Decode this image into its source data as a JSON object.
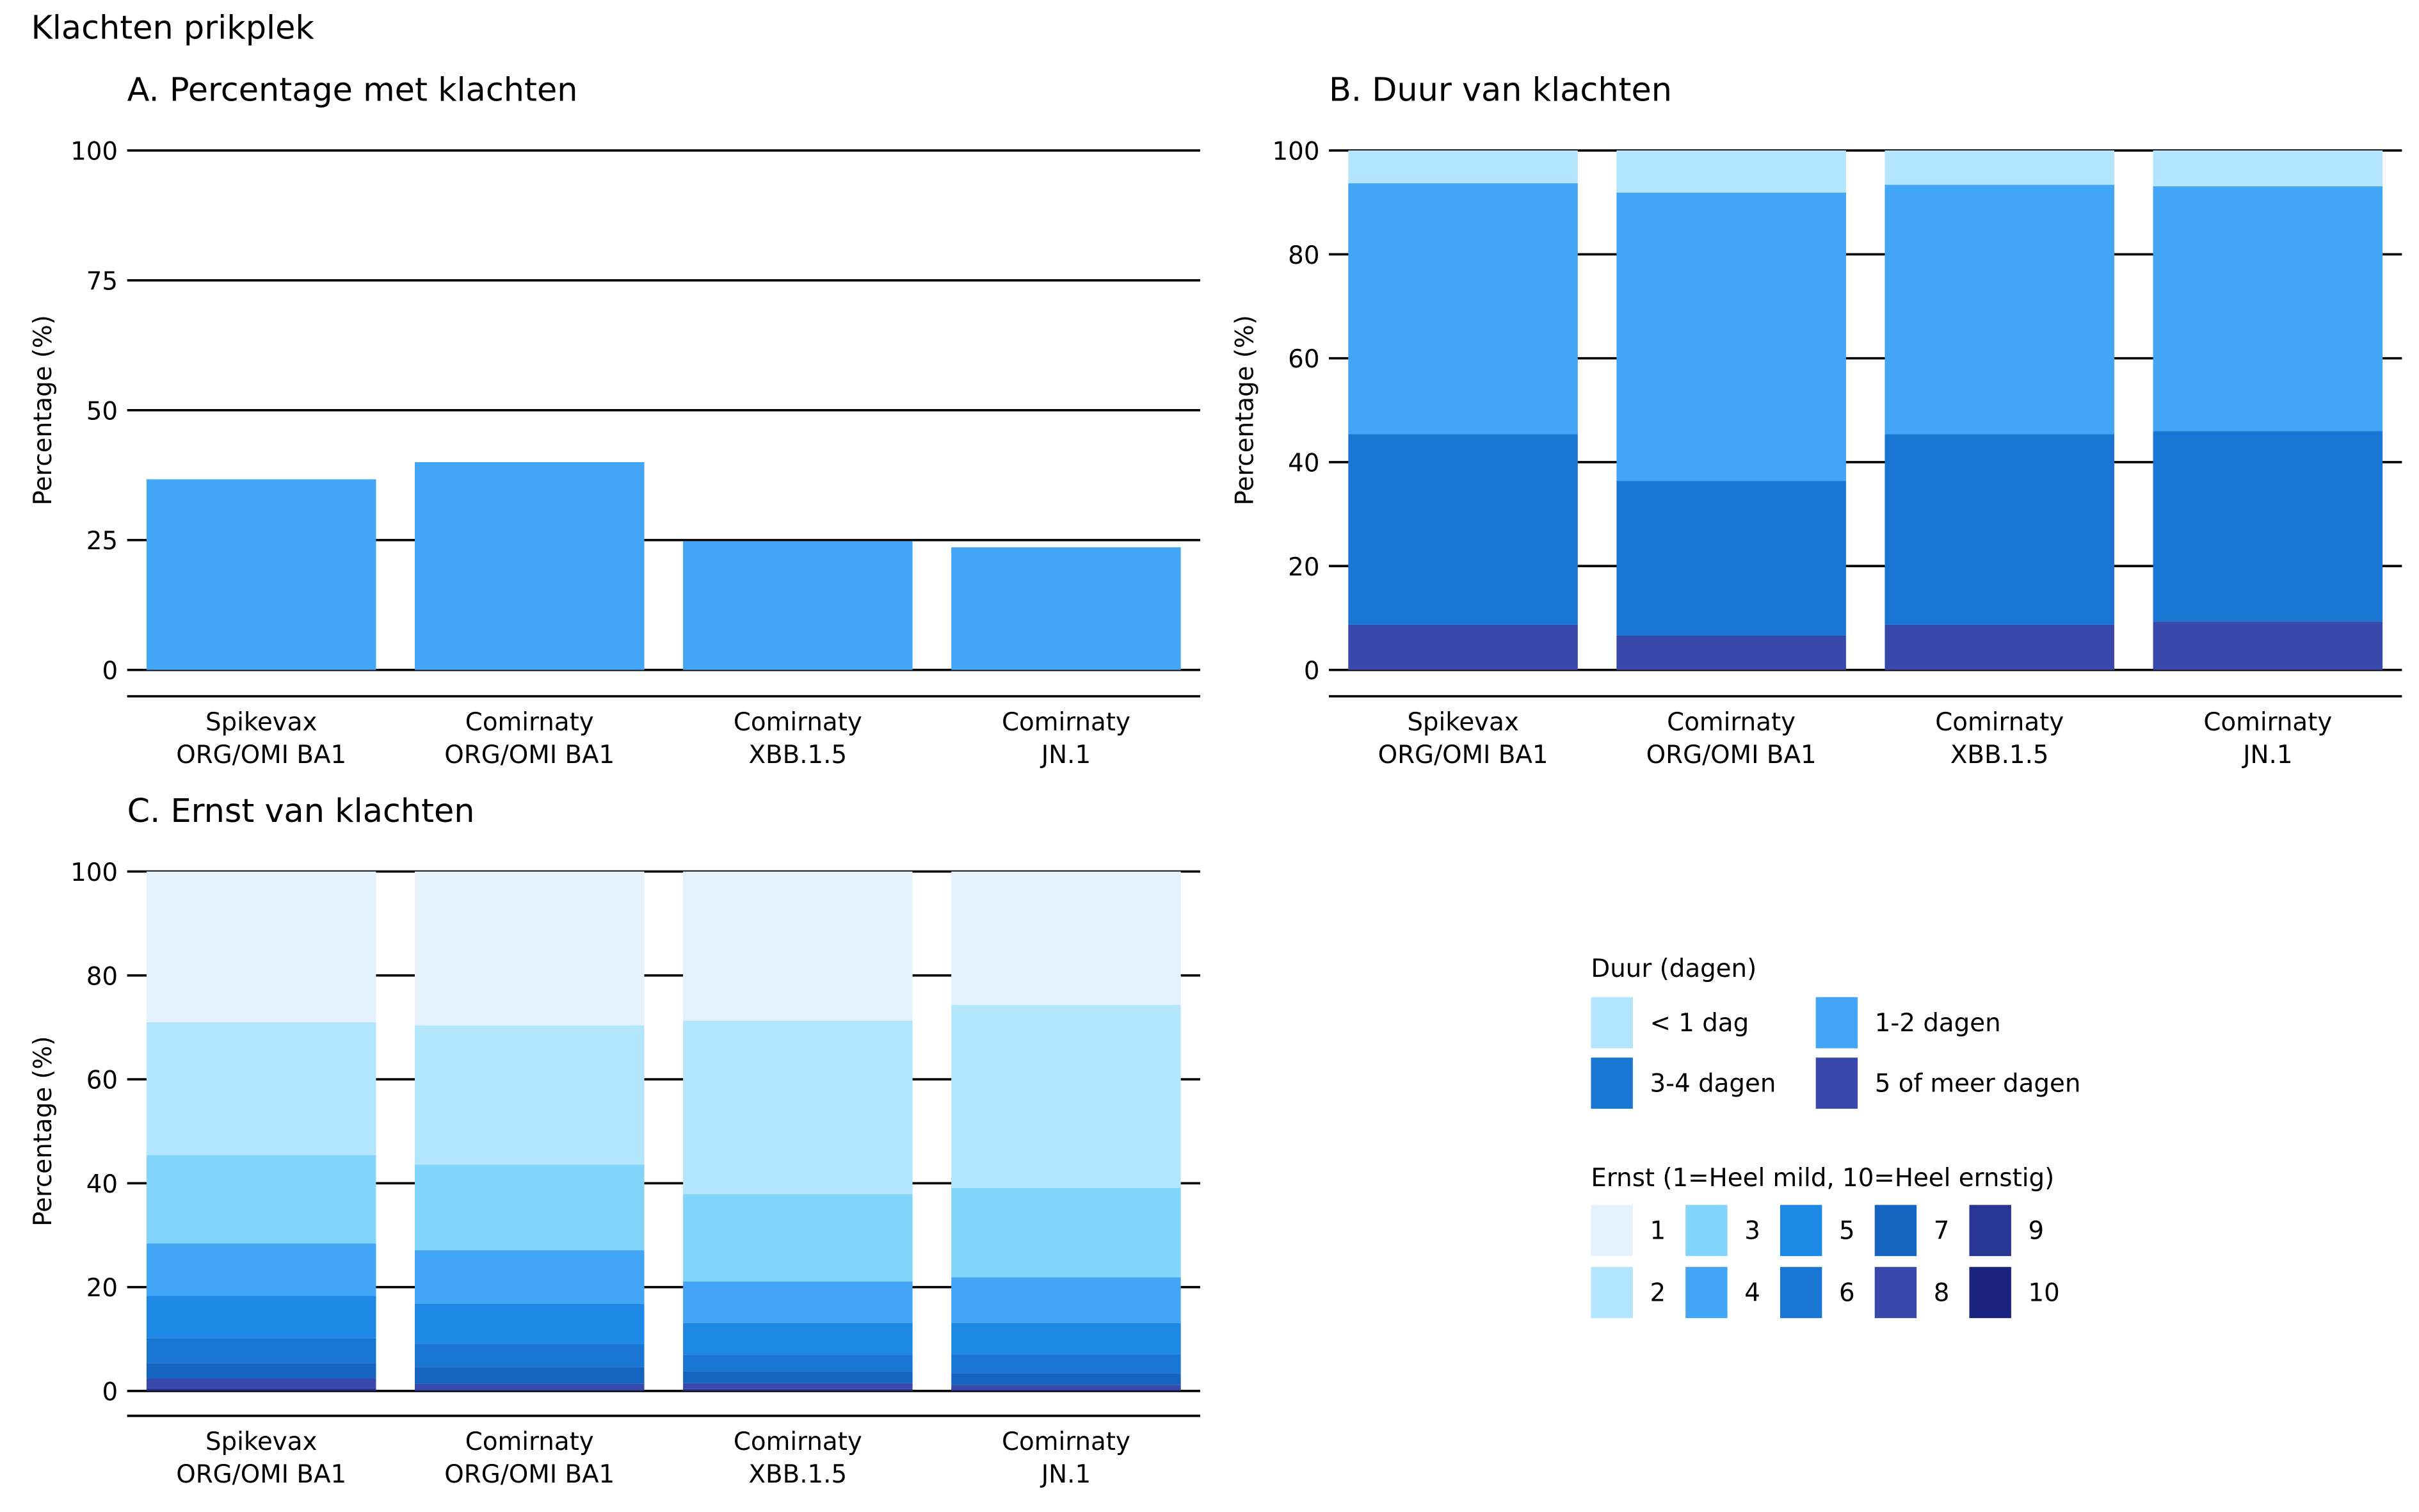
{
  "title": "Klachten prikplek",
  "colors": {
    "duur": [
      "#B3E5FC",
      "#42A5F5",
      "#1976D2",
      "#3949AB"
    ],
    "ernst": [
      "#E3F2FD",
      "#B3E5FC",
      "#81D4FA",
      "#42A5F5",
      "#1E88E5",
      "#1976D2",
      "#1565C0",
      "#3949AB",
      "#283593",
      "#1A237E"
    ]
  },
  "legend": {
    "duur_title": "Duur (dagen)",
    "duur_items": [
      "< 1 dag",
      "1-2 dagen",
      "3-4 dagen",
      "5 of meer dagen"
    ],
    "ernst_title": "Ernst (1=Heel mild, 10=Heel ernstig)",
    "ernst_items": [
      "1",
      "2",
      "3",
      "4",
      "5",
      "6",
      "7",
      "8",
      "9",
      "10"
    ]
  },
  "chart_data": [
    {
      "type": "bar",
      "title": "A. Percentage met klachten",
      "ylabel": "Percentage (%)",
      "ylim": [
        0,
        100
      ],
      "yticks": [
        "0",
        "25",
        "50",
        "75",
        "100"
      ],
      "categories": [
        [
          "Spikevax",
          "ORG/OMI BA1"
        ],
        [
          "Comirnaty",
          "ORG/OMI BA1"
        ],
        [
          "Comirnaty",
          "XBB.1.5"
        ],
        [
          "Comirnaty",
          "JN.1"
        ]
      ],
      "values": [
        36.7,
        40.0,
        24.8,
        23.6
      ]
    },
    {
      "type": "bar",
      "stacked": true,
      "title": "B. Duur van klachten",
      "ylabel": "Percentage (%)",
      "ylim": [
        0,
        100
      ],
      "yticks": [
        "0",
        "20",
        "40",
        "60",
        "80",
        "100"
      ],
      "categories": [
        [
          "Spikevax",
          "ORG/OMI BA1"
        ],
        [
          "Comirnaty",
          "ORG/OMI BA1"
        ],
        [
          "Comirnaty",
          "XBB.1.5"
        ],
        [
          "Comirnaty",
          "JN.1"
        ]
      ],
      "series": [
        {
          "name": "< 1 dag",
          "values": [
            6.3,
            8.1,
            6.6,
            6.9
          ]
        },
        {
          "name": "1-2 dagen",
          "values": [
            48.3,
            55.5,
            48.0,
            47.1
          ]
        },
        {
          "name": "3-4 dagen",
          "values": [
            36.7,
            29.8,
            36.7,
            36.7
          ]
        },
        {
          "name": "5 of meer dagen",
          "values": [
            8.7,
            6.6,
            8.7,
            9.3
          ]
        }
      ]
    },
    {
      "type": "bar",
      "stacked": true,
      "title": "C. Ernst van klachten",
      "ylabel": "Percentage (%)",
      "ylim": [
        0,
        100
      ],
      "yticks": [
        "0",
        "20",
        "40",
        "60",
        "80",
        "100"
      ],
      "categories": [
        [
          "Spikevax",
          "ORG/OMI BA1"
        ],
        [
          "Comirnaty",
          "ORG/OMI BA1"
        ],
        [
          "Comirnaty",
          "XBB.1.5"
        ],
        [
          "Comirnaty",
          "JN.1"
        ]
      ],
      "series": [
        {
          "name": "1",
          "values": [
            29.0,
            29.6,
            28.7,
            25.7
          ]
        },
        {
          "name": "2",
          "values": [
            25.6,
            26.8,
            33.4,
            35.2
          ]
        },
        {
          "name": "3",
          "values": [
            17.0,
            16.5,
            16.8,
            17.2
          ]
        },
        {
          "name": "4",
          "values": [
            10.1,
            10.3,
            8.0,
            8.8
          ]
        },
        {
          "name": "5",
          "values": [
            8.1,
            7.7,
            6.1,
            6.0
          ]
        },
        {
          "name": "6",
          "values": [
            4.8,
            4.5,
            3.2,
            3.7
          ]
        },
        {
          "name": "7",
          "values": [
            3.0,
            3.2,
            2.3,
            2.2
          ]
        },
        {
          "name": "8",
          "values": [
            1.9,
            1.2,
            1.1,
            0.9
          ]
        },
        {
          "name": "9",
          "values": [
            0.3,
            0.1,
            0.2,
            0.2
          ]
        },
        {
          "name": "10",
          "values": [
            0.2,
            0.1,
            0.2,
            0.1
          ]
        }
      ]
    }
  ]
}
